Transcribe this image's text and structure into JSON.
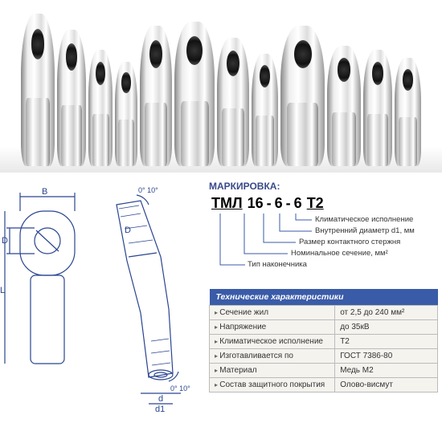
{
  "photo": {
    "lug_count": 12,
    "heights": [
      190,
      170,
      145,
      130,
      175,
      180,
      160,
      140,
      175,
      150,
      145,
      135
    ],
    "widths": [
      42,
      36,
      30,
      28,
      40,
      50,
      40,
      33,
      55,
      42,
      36,
      33
    ]
  },
  "diagram": {
    "labels": {
      "B": "B",
      "D": "D",
      "L": "L",
      "d": "d",
      "d1": "d1",
      "angle": "0° 10°"
    },
    "stroke": "#2a4590",
    "fill_hatch": "#2a4590"
  },
  "marking": {
    "title": "МАРКИРОВКА:",
    "code_parts": [
      "ТМЛ",
      "16",
      "-",
      "6",
      "-",
      "6",
      "Т2"
    ],
    "callouts": [
      "Климатическое исполнение",
      "Внутренний диаметр d1, мм",
      "Размер контактного стержня",
      "Номинальное сечение, мм²",
      "Тип наконечника"
    ]
  },
  "spec": {
    "header": "Технические характеристики",
    "rows": [
      [
        "Сечение жил",
        "от 2,5 до 240 мм²"
      ],
      [
        "Напряжение",
        "до 35кВ"
      ],
      [
        "Климатическое исполнение",
        "Т2"
      ],
      [
        "Изготавливается по",
        "ГОСТ 7386-80"
      ],
      [
        "Материал",
        "Медь М2"
      ],
      [
        "Состав защитного покрытия",
        "Олово-висмут"
      ]
    ]
  },
  "colors": {
    "brand_blue": "#3a5ba8",
    "diagram_blue": "#2a4590",
    "table_bg": "#f5f3ee",
    "border": "#bbb"
  }
}
